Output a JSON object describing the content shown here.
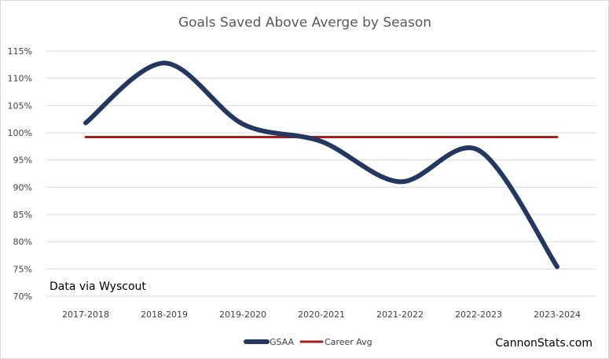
{
  "chart_data": {
    "type": "line",
    "title": "Goals Saved Above Averge by Season",
    "categories": [
      "2017-2018",
      "2018-2019",
      "2019-2020",
      "2020-2021",
      "2021-2022",
      "2022-2023",
      "2023-2024"
    ],
    "y_tick_labels": [
      "70%",
      "75%",
      "80%",
      "85%",
      "90%",
      "95%",
      "100%",
      "105%",
      "110%",
      "115%"
    ],
    "ylim": [
      70,
      115
    ],
    "y_step": 5,
    "grid": "horizontal",
    "legend_position": "bottom",
    "series": [
      {
        "name": "GSAA",
        "color": "#243761",
        "values": [
          101.8,
          112.8,
          101.6,
          98.4,
          91.0,
          96.8,
          75.4
        ]
      },
      {
        "name": "Career Avg",
        "color": "#a51d1d",
        "values": [
          99.2,
          99.2,
          99.2,
          99.2,
          99.2,
          99.2,
          99.2
        ]
      }
    ],
    "annotation": "Data via Wyscout"
  },
  "branding": {
    "site": "CannonStats.com"
  }
}
